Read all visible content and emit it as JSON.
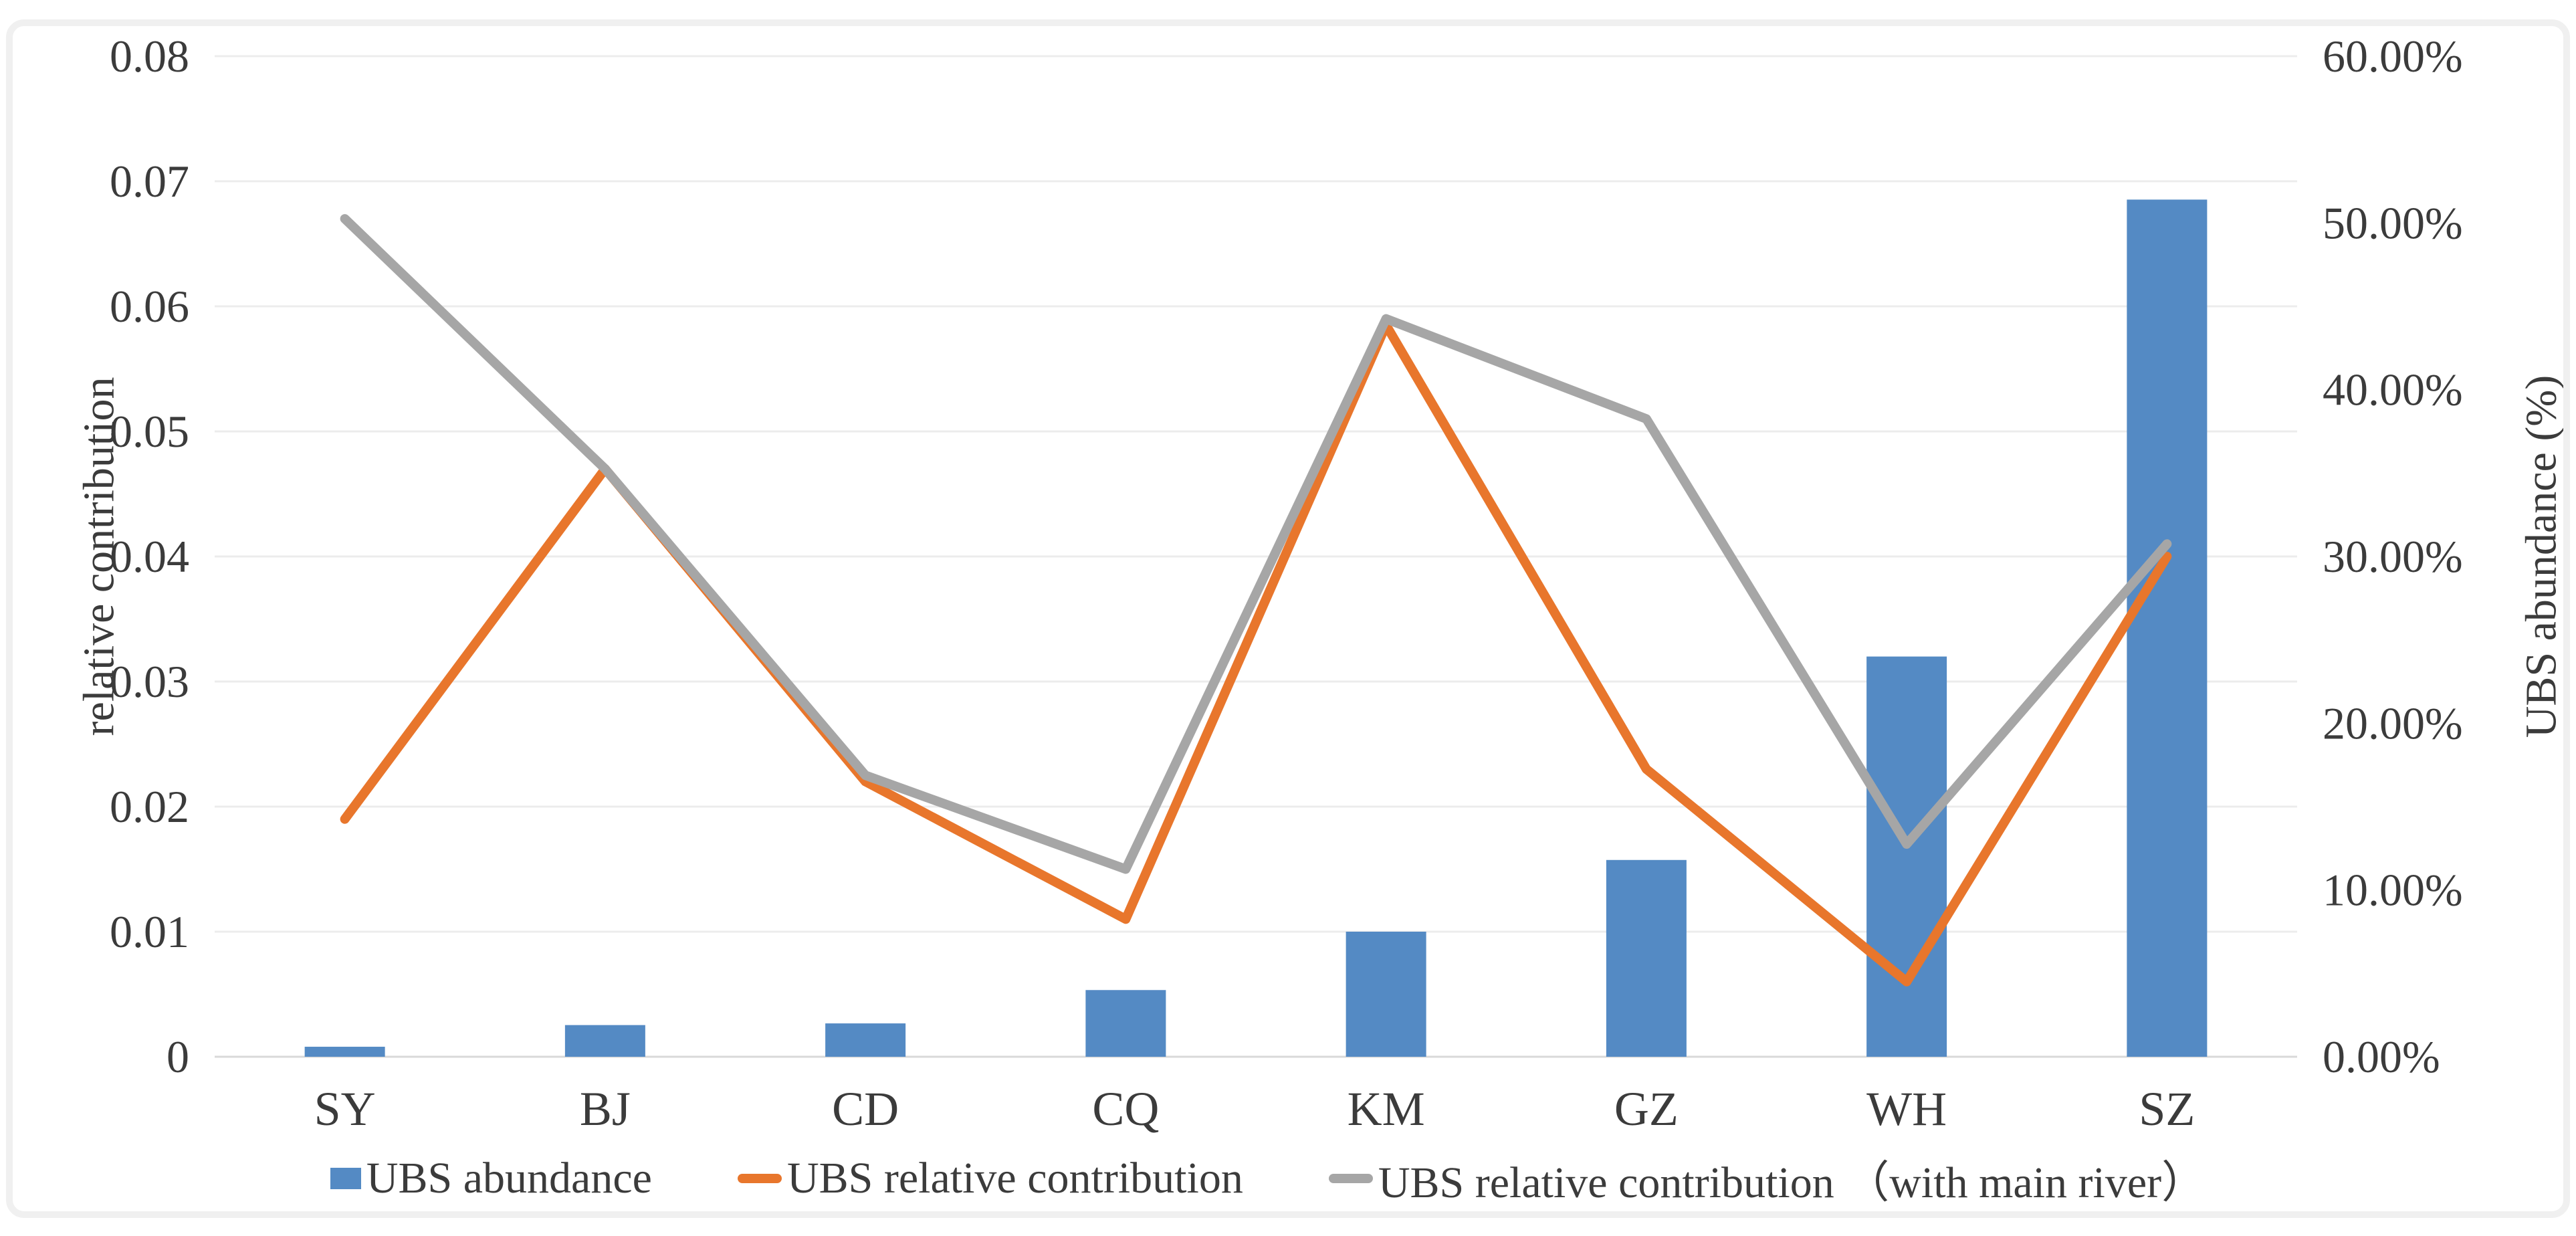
{
  "figure": {
    "background_color": "#ffffff",
    "frame_color": "#F0F0F0",
    "text_color": "#3B3B3B"
  },
  "chart_data": {
    "type": "bar+line-combo",
    "categories": [
      "SY",
      "BJ",
      "CD",
      "CQ",
      "KM",
      "GZ",
      "WH",
      "SZ"
    ],
    "bar_series": {
      "name": "UBS abundance",
      "axis": "right",
      "color": "#548AC4",
      "values_percent": [
        0.6,
        1.9,
        2.0,
        4.0,
        7.5,
        11.8,
        24.0,
        51.4
      ]
    },
    "line_series": [
      {
        "name": "UBS relative contribution",
        "axis": "left",
        "color": "#E8762C",
        "values": [
          0.019,
          0.047,
          0.022,
          0.011,
          0.0585,
          0.023,
          0.006,
          0.04
        ]
      },
      {
        "name": "UBS relative contribution （with main river）",
        "axis": "left",
        "color": "#A6A6A6",
        "values": [
          0.067,
          0.047,
          0.0225,
          0.015,
          0.059,
          0.051,
          0.017,
          0.041
        ]
      }
    ],
    "left_axis": {
      "title": "relative contribution",
      "min": 0,
      "max": 0.08,
      "tick_labels": [
        "0.08",
        "0.07",
        "0.06",
        "0.05",
        "0.04",
        "0.03",
        "0.02",
        "0.01",
        "0"
      ]
    },
    "right_axis": {
      "title": "UBS abundance (%)",
      "min": 0,
      "max": 60,
      "tick_labels": [
        "60.00%",
        "50.00%",
        "40.00%",
        "30.00%",
        "20.00%",
        "10.00%",
        "0.00%"
      ]
    },
    "grid": {
      "show": true,
      "color": "#ECECEC",
      "baseline_color": "#D9D9D9"
    },
    "legend_position": "bottom"
  }
}
